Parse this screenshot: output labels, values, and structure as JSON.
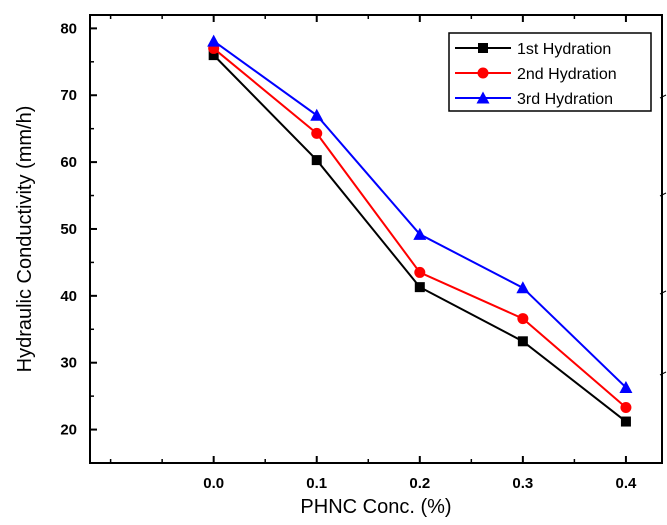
{
  "chart_data": {
    "type": "line",
    "xlabel": "PHNC Conc. (%)",
    "ylabel": "Hydraulic Conductivity (mm/h)",
    "x": [
      0.0,
      0.1,
      0.2,
      0.3,
      0.4
    ],
    "x_tick_labels": [
      "0.0",
      "0.1",
      "0.2",
      "0.3",
      "0.4"
    ],
    "y_tick_labels": [
      "20",
      "30",
      "40",
      "50",
      "60",
      "70",
      "80"
    ],
    "xlim": [
      -0.12,
      0.435
    ],
    "ylim": [
      15,
      82
    ],
    "grid": false,
    "legend_position": "top-right",
    "series": [
      {
        "name": "1st Hydration",
        "color": "#000000",
        "marker": "square",
        "values": [
          76,
          60.3,
          41.3,
          33.2,
          21.2
        ]
      },
      {
        "name": "2nd Hydration",
        "color": "#ff0000",
        "marker": "circle",
        "values": [
          77,
          64.3,
          43.5,
          36.6,
          23.3
        ]
      },
      {
        "name": "3rd Hydration",
        "color": "#0000ff",
        "marker": "triangle",
        "values": [
          78.1,
          67,
          49.2,
          41.2,
          26.3
        ]
      }
    ]
  }
}
